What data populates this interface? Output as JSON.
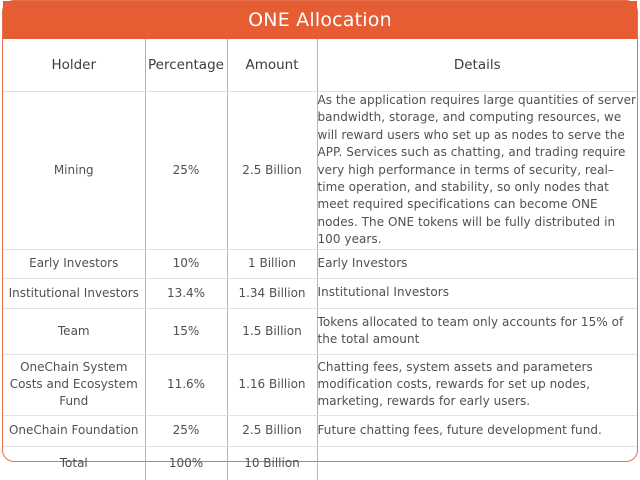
{
  "title": "ONE Allocation",
  "headers": {
    "holder": "Holder",
    "percentage": "Percentage",
    "amount": "Amount",
    "details": "Details"
  },
  "rows": [
    {
      "holder": "Mining",
      "percentage": "25%",
      "amount": "2.5 Billion",
      "details": "As the application requires large quantities of server bandwidth, storage, and computing resources, we will reward users who set up as nodes to serve the APP. Services such as chatting, and trading require very high performance in terms of security, real–time operation, and stability, so only nodes that meet required specifications can become ONE nodes. The ONE tokens will be fully distributed in 100 years."
    },
    {
      "holder": "Early Investors",
      "percentage": "10%",
      "amount": "1 Billion",
      "details": "Early Investors"
    },
    {
      "holder": "Institutional Investors",
      "percentage": "13.4%",
      "amount": "1.34 Billion",
      "details": "Institutional Investors"
    },
    {
      "holder": "Team",
      "percentage": "15%",
      "amount": "1.5 Billion",
      "details": "Tokens allocated to team only accounts for 15% of the total amount"
    },
    {
      "holder": "OneChain System Costs and Ecosystem Fund",
      "percentage": "11.6%",
      "amount": "1.16 Billion",
      "details": "Chatting fees, system assets and parameters modification costs, rewards for set up nodes, marketing, rewards for early users."
    },
    {
      "holder": "OneChain Foundation",
      "percentage": "25%",
      "amount": "2.5 Billion",
      "details": "Future chatting fees, future development fund."
    },
    {
      "holder": "Total",
      "percentage": "100%",
      "amount": "10 Billion",
      "details": ""
    }
  ],
  "colors": {
    "header_bar": "#e65c33",
    "column_divider": "#f0a08a",
    "text": "#505050"
  }
}
